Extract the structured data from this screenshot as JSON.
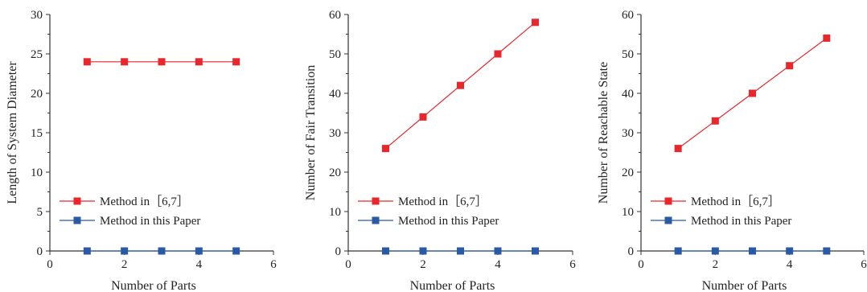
{
  "chart_data": [
    {
      "type": "line",
      "xlabel": "Number of Parts",
      "ylabel": "Length of System Diameter",
      "xlim": [
        0,
        6
      ],
      "ylim": [
        0,
        30
      ],
      "xticks": [
        0,
        2,
        4,
        6
      ],
      "yticks": [
        0,
        5,
        10,
        15,
        20,
        25,
        30
      ],
      "legend_position": "lower-left",
      "series": [
        {
          "name": "Method in［6,7］",
          "color": "#e8262b",
          "marker": "square",
          "x": [
            1,
            2,
            3,
            4,
            5
          ],
          "y": [
            24,
            24,
            24,
            24,
            24
          ]
        },
        {
          "name": "Method in this Paper",
          "color": "#2a5aa5",
          "marker": "square",
          "x": [
            1,
            2,
            3,
            4,
            5
          ],
          "y": [
            0,
            0,
            0,
            0,
            0
          ]
        }
      ]
    },
    {
      "type": "line",
      "xlabel": "Number of Parts",
      "ylabel": "Number of Fair Transition",
      "xlim": [
        0,
        6
      ],
      "ylim": [
        0,
        60
      ],
      "xticks": [
        0,
        2,
        4,
        6
      ],
      "yticks": [
        0,
        10,
        20,
        30,
        40,
        50,
        60
      ],
      "legend_position": "lower-left",
      "series": [
        {
          "name": "Method in［6,7］",
          "color": "#e8262b",
          "marker": "square",
          "x": [
            1,
            2,
            3,
            4,
            5
          ],
          "y": [
            26,
            34,
            42,
            50,
            58
          ]
        },
        {
          "name": "Method in this Paper",
          "color": "#2a5aa5",
          "marker": "square",
          "x": [
            1,
            2,
            3,
            4,
            5
          ],
          "y": [
            0,
            0,
            0,
            0,
            0
          ]
        }
      ]
    },
    {
      "type": "line",
      "xlabel": "Number of Parts",
      "ylabel": "Number of Reachable State",
      "xlim": [
        0,
        6
      ],
      "ylim": [
        0,
        60
      ],
      "xticks": [
        0,
        2,
        4,
        6
      ],
      "yticks": [
        0,
        10,
        20,
        30,
        40,
        50,
        60
      ],
      "legend_position": "lower-left",
      "series": [
        {
          "name": "Method in［6,7］",
          "color": "#e8262b",
          "marker": "square",
          "x": [
            1,
            2,
            3,
            4,
            5
          ],
          "y": [
            26,
            33,
            40,
            47,
            54
          ]
        },
        {
          "name": "Method in this Paper",
          "color": "#2a5aa5",
          "marker": "square",
          "x": [
            1,
            2,
            3,
            4,
            5
          ],
          "y": [
            0,
            0,
            0,
            0,
            0
          ]
        }
      ]
    }
  ]
}
